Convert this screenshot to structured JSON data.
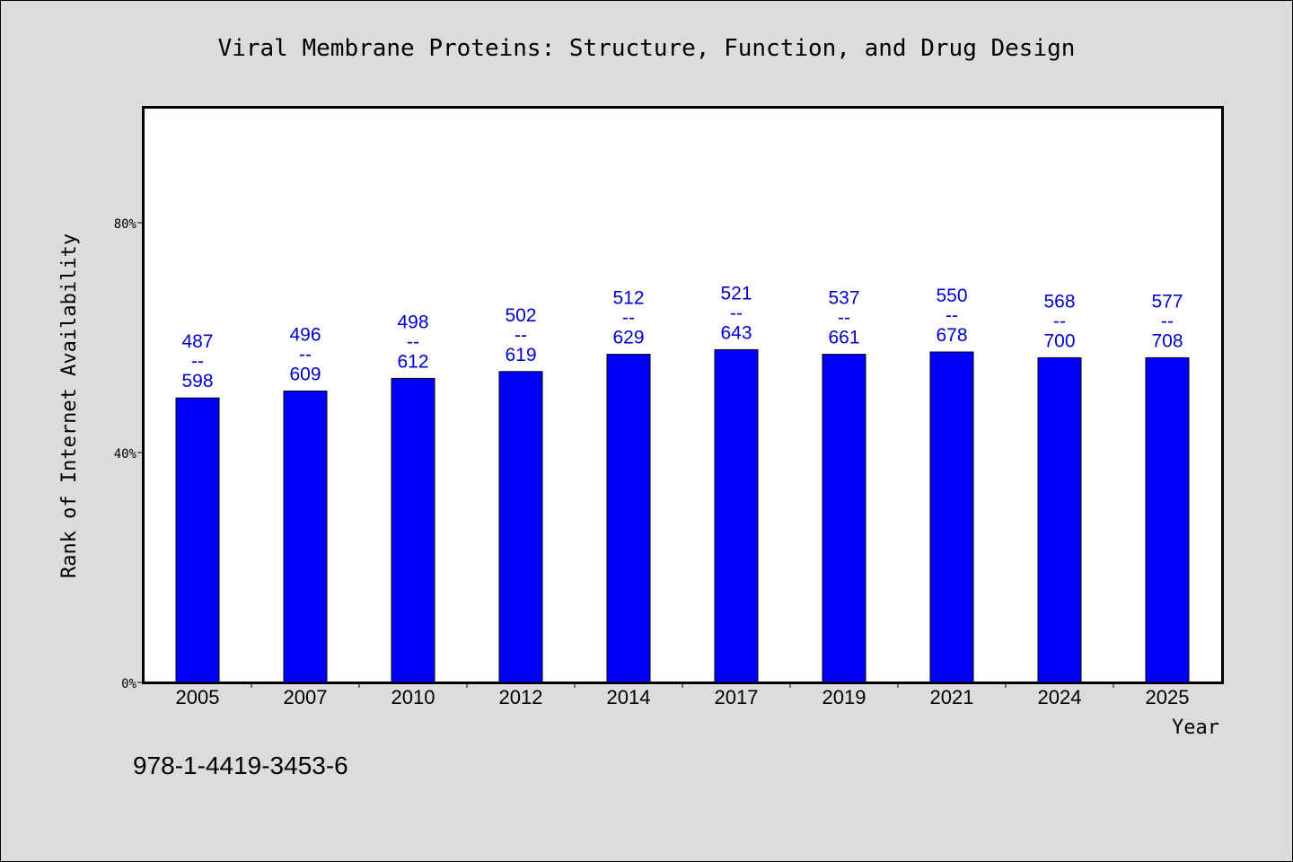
{
  "chart_data": {
    "type": "bar",
    "title": "Viral Membrane Proteins: Structure, Function, and Drug Design",
    "xlabel": "Year",
    "ylabel": "Rank of Internet Availability",
    "ylim": [
      0,
      100
    ],
    "yticks": [
      0,
      40,
      80
    ],
    "ytick_labels": [
      "0%",
      "40%",
      "80%"
    ],
    "categories": [
      "2005",
      "2007",
      "2010",
      "2012",
      "2014",
      "2017",
      "2019",
      "2021",
      "2024",
      "2025"
    ],
    "values": [
      49.5,
      50.7,
      52.9,
      54.1,
      57.1,
      57.9,
      57.1,
      57.5,
      56.5,
      56.5
    ],
    "bar_labels": [
      [
        "487",
        "--",
        "598"
      ],
      [
        "496",
        "--",
        "609"
      ],
      [
        "498",
        "--",
        "612"
      ],
      [
        "502",
        "--",
        "619"
      ],
      [
        "512",
        "--",
        "629"
      ],
      [
        "521",
        "--",
        "643"
      ],
      [
        "537",
        "--",
        "661"
      ],
      [
        "550",
        "--",
        "678"
      ],
      [
        "568",
        "--",
        "700"
      ],
      [
        "577",
        "--",
        "708"
      ]
    ],
    "grid": false,
    "legend": "none",
    "colors": {
      "bar": "#0000ff",
      "label": "#0000cc",
      "axis": "#000000",
      "plot_bg": "#ffffff",
      "page_bg": "#dcdcdc"
    }
  },
  "footer": {
    "isbn": "978-1-4419-3453-6"
  }
}
